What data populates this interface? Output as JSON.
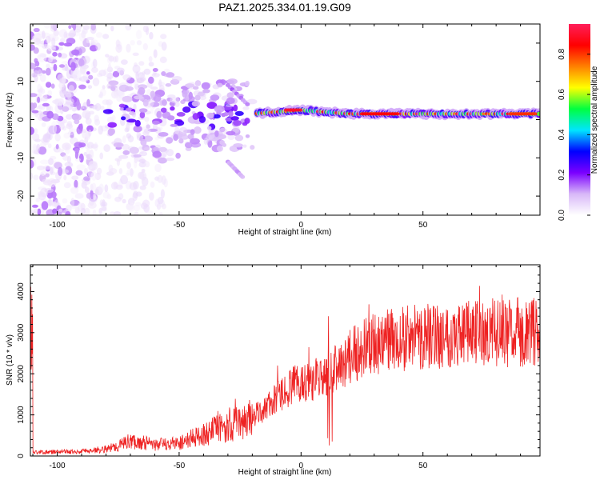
{
  "figure": {
    "title": "PAZ1.2025.334.01.19.G09"
  },
  "chart_data": [
    {
      "type": "heatmap",
      "title": "PAZ1.2025.334.01.19.G09",
      "xlabel": "Height of straight line (km)",
      "ylabel": "Frequency (Hz)",
      "xlim": [
        -111,
        98
      ],
      "ylim": [
        -25,
        25
      ],
      "xticks": [
        -100,
        -50,
        0,
        50
      ],
      "xtick_labels": [
        "-100",
        "-50",
        "0",
        "50"
      ],
      "yticks": [
        -20,
        -10,
        0,
        10,
        20
      ],
      "ytick_labels": [
        "-20",
        "-10",
        "0",
        "10",
        "20"
      ],
      "colorbar": {
        "label": "Normalized spectral amplitude",
        "range": [
          0,
          0.95
        ],
        "ticks": [
          0.0,
          0.2,
          0.4,
          0.6,
          0.8
        ],
        "tick_labels": [
          "0.0",
          "0.2",
          "0.4",
          "0.6",
          "0.8"
        ],
        "colormap": [
          "#ffffff",
          "#d8b8f8",
          "#7b00ff",
          "#0000ff",
          "#00e5ff",
          "#00ff40",
          "#ffff00",
          "#ff8000",
          "#ff0000",
          "#ff1f5a"
        ]
      },
      "signal_band": {
        "description_values": "main tone near 0-2 Hz for heights above about -20 km; scattered energy below",
        "center_freq_hz": [
          {
            "x": -40,
            "f": 1.0
          },
          {
            "x": -20,
            "f": 1.5
          },
          {
            "x": 0,
            "f": 2.5
          },
          {
            "x": 20,
            "f": 1.5
          },
          {
            "x": 50,
            "f": 1.5
          },
          {
            "x": 95,
            "f": 1.5
          }
        ]
      }
    },
    {
      "type": "line",
      "xlabel": "Height of straight line (km)",
      "ylabel": "SNR (10 * v/v)",
      "xlim": [
        -111,
        98
      ],
      "ylim": [
        0,
        4650
      ],
      "xticks": [
        -100,
        -50,
        0,
        50
      ],
      "xtick_labels": [
        "-100",
        "-50",
        "0",
        "50"
      ],
      "yticks": [
        0,
        1000,
        2000,
        3000,
        4000
      ],
      "ytick_labels": [
        "0",
        "1000",
        "2000",
        "3000",
        "4000"
      ],
      "series": [
        {
          "name": "SNR",
          "color": "#ee2222",
          "x": [
            -110,
            -100,
            -90,
            -80,
            -75,
            -70,
            -65,
            -60,
            -55,
            -50,
            -45,
            -40,
            -35,
            -30,
            -25,
            -20,
            -15,
            -10,
            -5,
            0,
            5,
            10,
            15,
            20,
            25,
            30,
            35,
            40,
            45,
            50,
            55,
            60,
            65,
            70,
            75,
            80,
            85,
            90,
            95,
            98
          ],
          "y": [
            90,
            100,
            110,
            170,
            250,
            370,
            330,
            270,
            290,
            320,
            420,
            520,
            640,
            720,
            820,
            940,
            1150,
            1400,
            1650,
            1800,
            1850,
            1900,
            2150,
            2400,
            2600,
            2720,
            2800,
            2850,
            2880,
            2900,
            2930,
            2950,
            2970,
            2990,
            3000,
            3000,
            3000,
            3020,
            3000,
            3000
          ]
        }
      ]
    }
  ]
}
